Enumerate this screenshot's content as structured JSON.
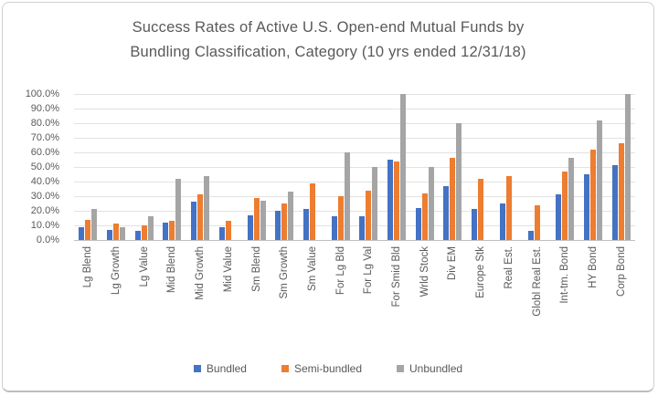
{
  "chart": {
    "title_line1": "Success Rates of Active U.S. Open-end Mutual Funds by",
    "title_line2": "Bundling Classification, Category (10 yrs ended 12/31/18)"
  },
  "chart_data": {
    "type": "bar",
    "title": "Success Rates of Active U.S. Open-end Mutual Funds by Bundling Classification, Category (10 yrs ended 12/31/18)",
    "categories": [
      "Lg Blend",
      "Lg Growth",
      "Lg Value",
      "Mid Blend",
      "Mid Growth",
      "Mid Value",
      "Sm Blend",
      "Sm Growth",
      "Sm Value",
      "For Lg Bld",
      "For Lg Val",
      "For Smid Bld",
      "Wrld Stock",
      "Div EM",
      "Europe Stk",
      "Real Est.",
      "Globl Real Est.",
      "Int-tm. Bond",
      "HY Bond",
      "Corp Bond"
    ],
    "series": [
      {
        "name": "Bundled",
        "color": "#4472C4",
        "values": [
          9,
          7,
          6,
          12,
          26,
          9,
          17,
          20,
          21,
          16,
          16,
          55,
          22,
          37,
          21,
          25,
          6,
          31,
          45,
          51
        ]
      },
      {
        "name": "Semi-bundled",
        "color": "#ED7D31",
        "values": [
          14,
          11,
          10,
          13,
          31,
          13,
          29,
          25,
          39,
          30,
          34,
          54,
          32,
          56,
          42,
          44,
          24,
          47,
          62,
          66
        ]
      },
      {
        "name": "Unbundled",
        "color": "#A5A5A5",
        "values": [
          21,
          9,
          16,
          42,
          44,
          0,
          27,
          33,
          0,
          60,
          50,
          100,
          50,
          80,
          0,
          0,
          0,
          56,
          82,
          100
        ]
      }
    ],
    "y_ticks": [
      "100.0%",
      "90.0%",
      "80.0%",
      "70.0%",
      "60.0%",
      "50.0%",
      "40.0%",
      "30.0%",
      "20.0%",
      "10.0%",
      "0.0%"
    ],
    "ylabel": "",
    "xlabel": "",
    "ylim": [
      0,
      100
    ],
    "grid": true,
    "legend_position": "bottom"
  },
  "colors": {
    "title_text": "#595959",
    "axis_text": "#595959",
    "gridline": "#e2e2e2",
    "axis_line": "#bfbfbf",
    "card_border": "#cfcfcf"
  }
}
